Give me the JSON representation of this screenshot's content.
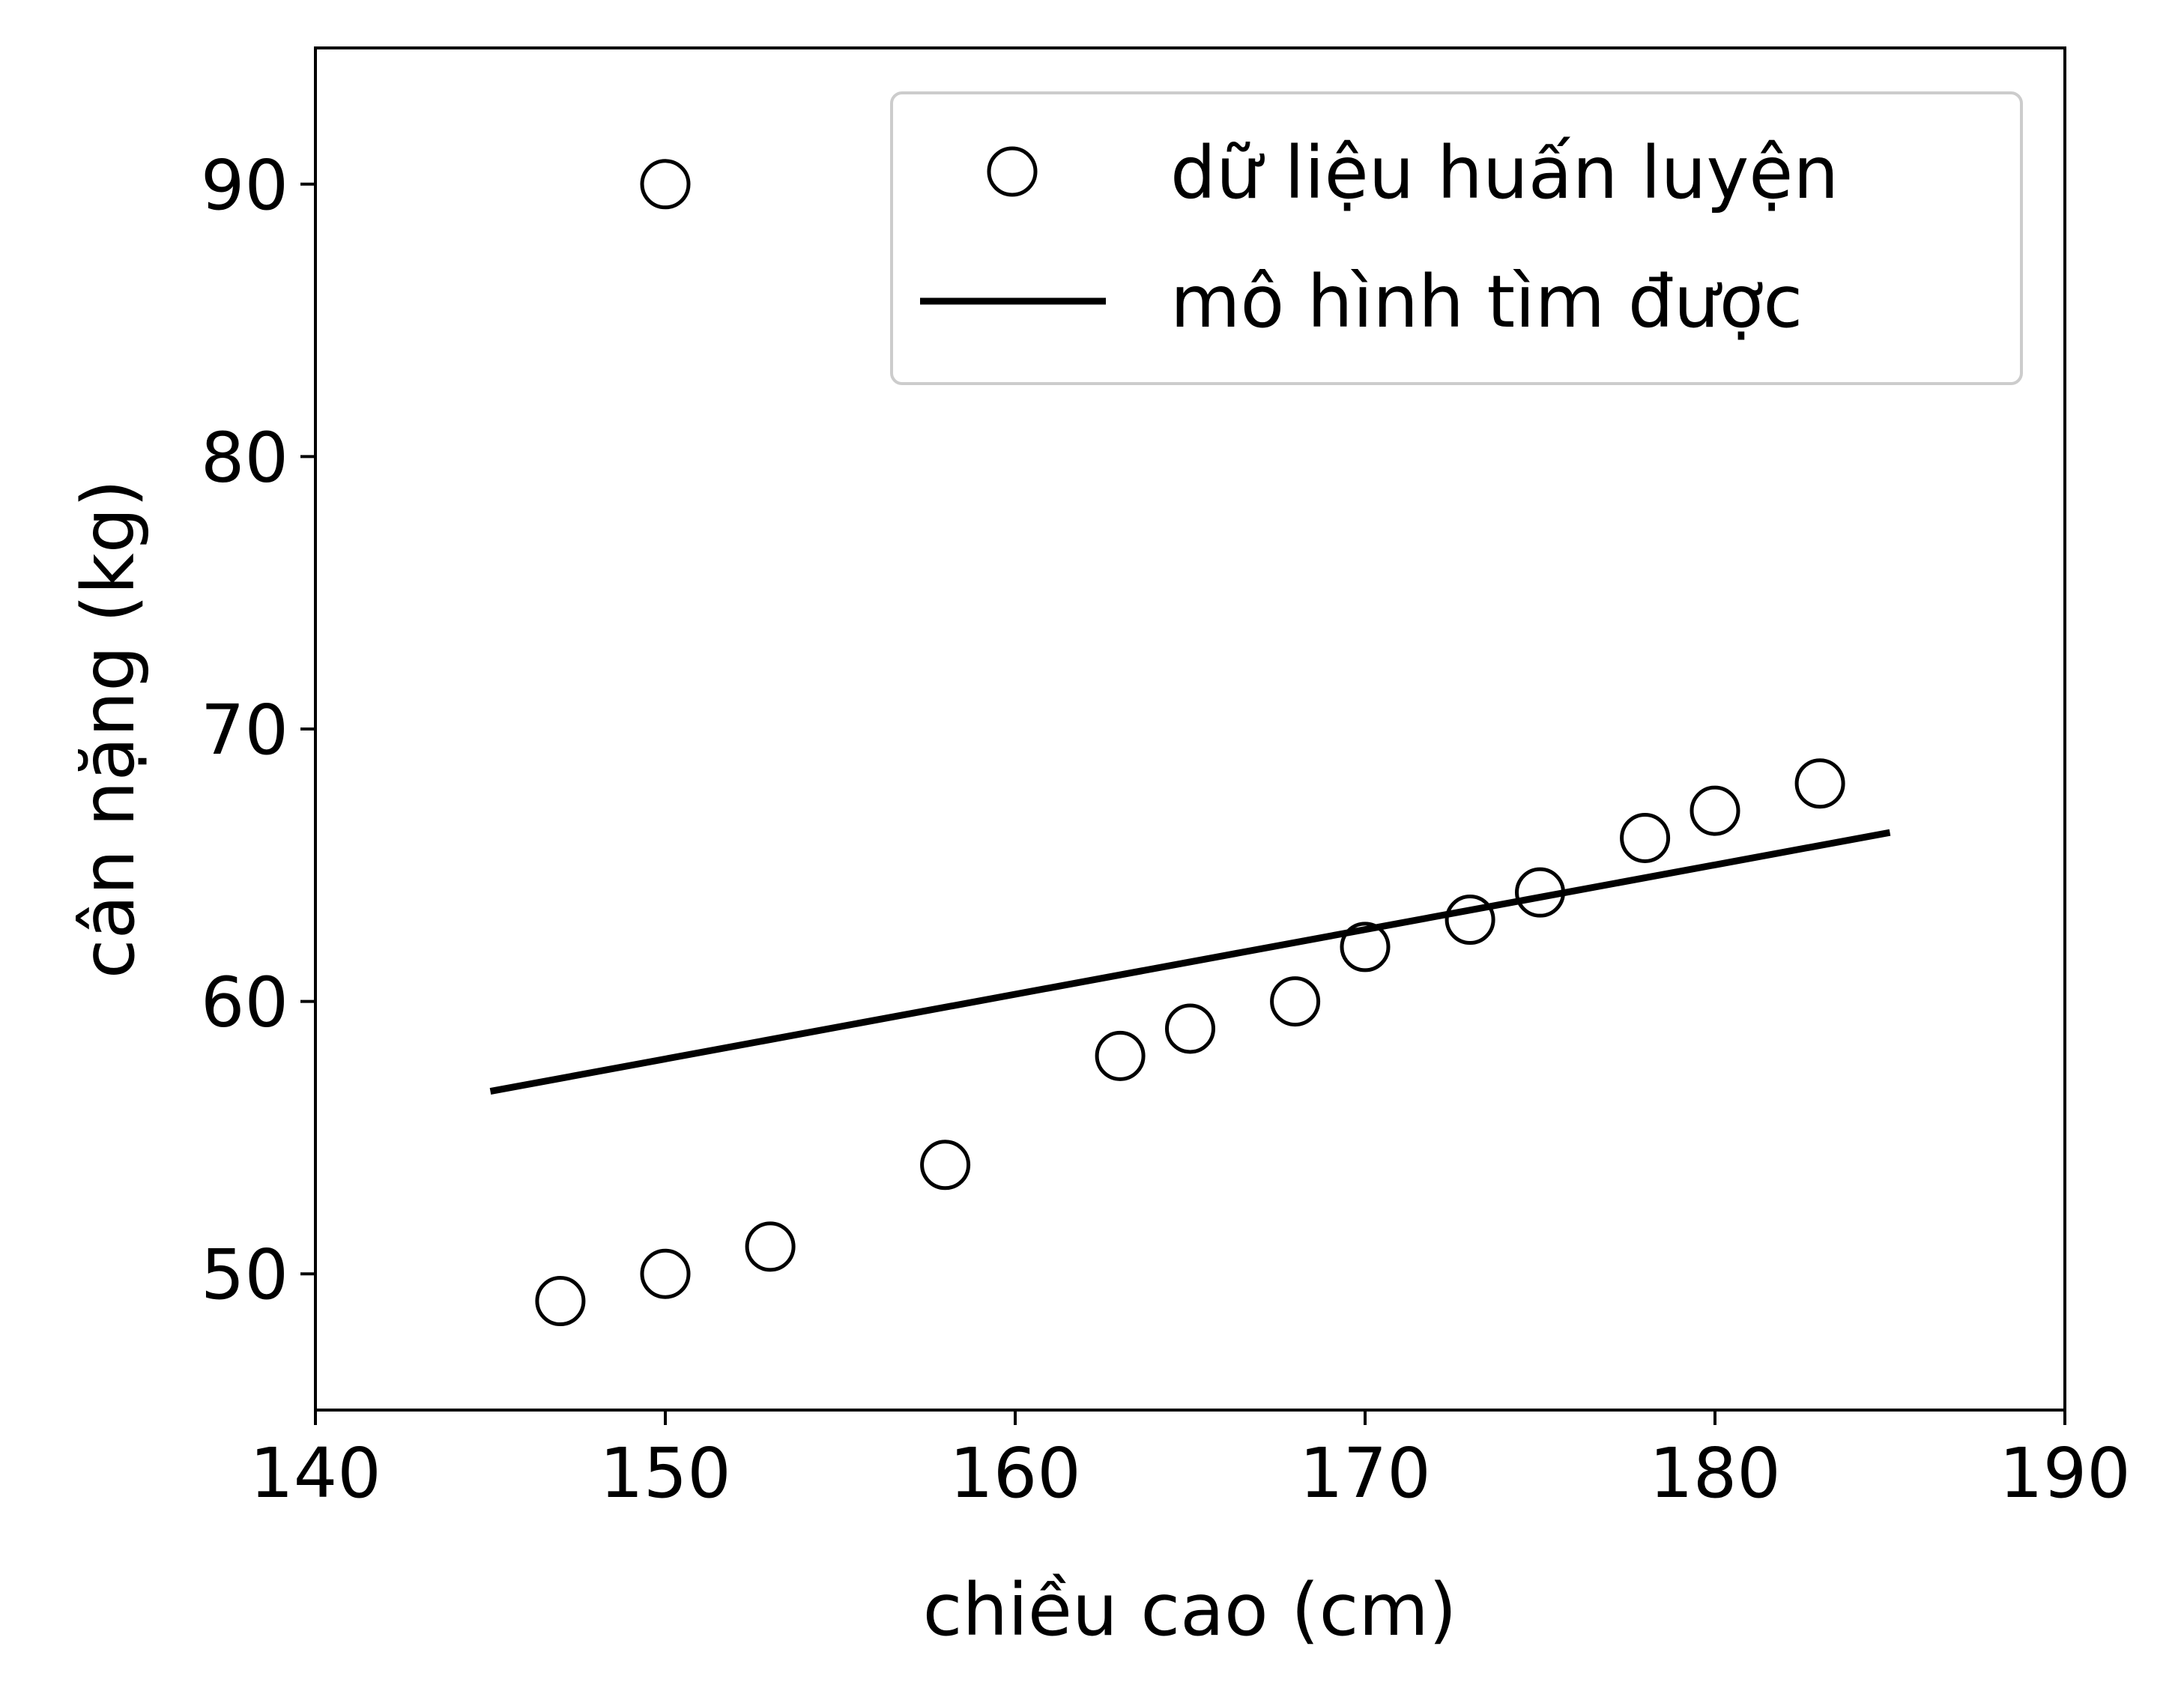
{
  "chart_data": {
    "type": "scatter",
    "xlabel": "chiều cao (cm)",
    "ylabel": "cân nặng (kg)",
    "xlim": [
      140,
      190
    ],
    "ylim": [
      45,
      95
    ],
    "x_ticks": [
      140,
      150,
      160,
      170,
      180,
      190
    ],
    "y_ticks": [
      50,
      60,
      70,
      80,
      90
    ],
    "x_tick_labels": [
      "140",
      "150",
      "160",
      "170",
      "180",
      "190"
    ],
    "y_tick_labels": [
      "50",
      "60",
      "70",
      "80",
      "90"
    ],
    "grid": false,
    "legend": {
      "placement": "top-right",
      "entries": [
        "dữ liệu huấn luyện",
        "mô hình tìm được"
      ]
    },
    "series": [
      {
        "name": "dữ liệu huấn luyện",
        "kind": "points",
        "marker": "hollow-circle",
        "color": "#000000",
        "x": [
          147,
          150,
          153,
          158,
          163,
          165,
          168,
          170,
          173,
          175,
          178,
          180,
          183,
          150
        ],
        "y": [
          49,
          50,
          51,
          54,
          58,
          59,
          60,
          62,
          63,
          64,
          66,
          67,
          68,
          90
        ]
      },
      {
        "name": "mô hình tìm được",
        "kind": "line",
        "color": "#000000",
        "x": [
          145,
          185
        ],
        "y": [
          56.7,
          66.2
        ]
      }
    ]
  }
}
